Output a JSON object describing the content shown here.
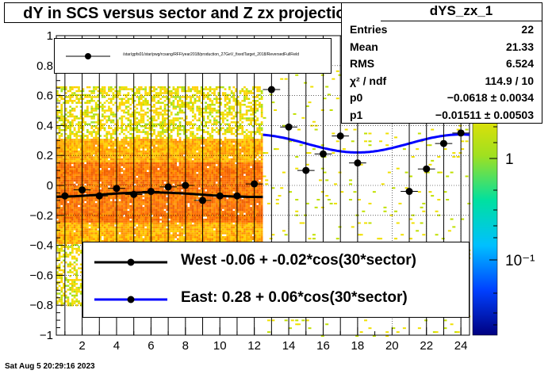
{
  "title": "dY in SCS versus sector and Z zx projection",
  "stats": {
    "name": "dYS_zx_1",
    "rows": [
      {
        "key": "Entries",
        "value": "22"
      },
      {
        "key": "Mean",
        "value": "21.33"
      },
      {
        "key": "RMS",
        "value": "6.524"
      },
      {
        "key": "χ² / ndf",
        "value": "114.9 / 10"
      },
      {
        "key": "p0",
        "value": "−0.0618 ± 0.0034"
      },
      {
        "key": "p1",
        "value": "−0.01511 ± 0.00503"
      }
    ]
  },
  "legend_file": "/star/gpfs01/star/pwg/rcsang/RFF/year2018/production_27GeV_fixedTarget_2018/ReversedFullField",
  "legend_fit": {
    "west": "West -0.06 + -0.02*cos(30*sector)",
    "east": "East:  0.28 +  0.06*cos(30*sector)"
  },
  "timestamp": "Sat Aug  5 20:29:16 2023",
  "colors": {
    "west_fit": "#000000",
    "east_fit": "#0000ff",
    "markers": "#000000"
  },
  "chart_data": {
    "type": "scatter",
    "xlim": [
      0.5,
      24.5
    ],
    "ylim": [
      -1,
      1
    ],
    "x_ticks": [
      2,
      4,
      6,
      8,
      10,
      12,
      14,
      16,
      18,
      20,
      22,
      24
    ],
    "y_ticks": [
      "−1",
      "−0.8",
      "−0.6",
      "−0.4",
      "−0.2",
      "0",
      "0.2",
      "0.4",
      "0.6",
      "0.8",
      "1"
    ],
    "z_scale": "log",
    "z_ticks": [
      "1",
      "10⁻¹"
    ],
    "grid": true,
    "series": [
      {
        "x": [
          1,
          2,
          3,
          4,
          5,
          6,
          7,
          8,
          9,
          10,
          11,
          12
        ],
        "y": [
          -0.07,
          -0.03,
          -0.07,
          -0.02,
          -0.06,
          -0.04,
          -0.01,
          0.0,
          -0.1,
          -0.07,
          -0.07,
          0.01
        ]
      },
      {
        "x": [
          13,
          14,
          15,
          16,
          17,
          18,
          21,
          22,
          23,
          24
        ],
        "y": [
          0.64,
          0.39,
          0.1,
          0.21,
          0.33,
          0.15,
          -0.04,
          0.11,
          0.28,
          0.35
        ]
      }
    ],
    "fits": [
      {
        "p0": -0.0618,
        "p1": -0.01511,
        "x_range": [
          0.5,
          12.5
        ]
      },
      {
        "p0": 0.28,
        "p1": 0.06,
        "x_range": [
          12.5,
          24.5
        ]
      }
    ]
  }
}
